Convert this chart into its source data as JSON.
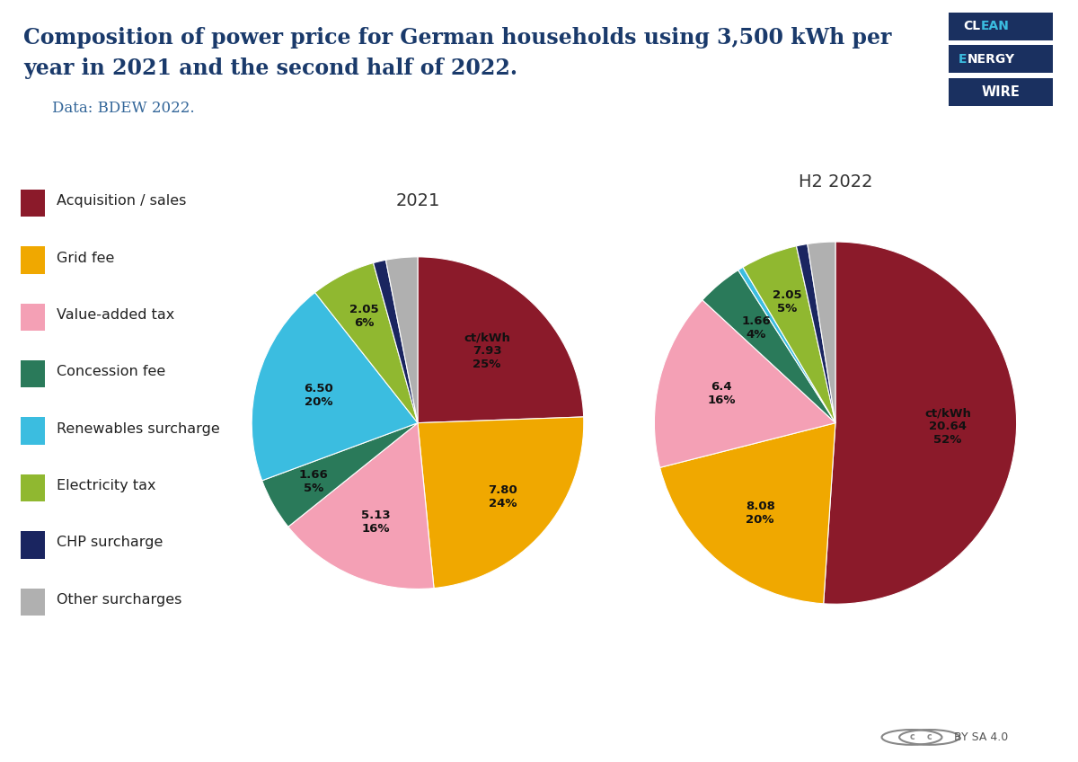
{
  "title_line1": "Composition of power price for German households using 3,500 kWh per",
  "title_line2": "year in 2021 and the second half of 2022.",
  "subtitle": "Data: BDEW 2022.",
  "title_color": "#1a3a6b",
  "subtitle_color": "#336699",
  "background_color": "#ffffff",
  "categories": [
    "Acquisition / sales",
    "Grid fee",
    "Value-added tax",
    "Concession fee",
    "Renewables surcharge",
    "Electricity tax",
    "CHP surcharge",
    "Other surcharges"
  ],
  "colors": [
    "#8b1a2a",
    "#f0a800",
    "#f4a0b5",
    "#2a7a5a",
    "#3bbde0",
    "#90b830",
    "#1a2560",
    "#b0b0b0"
  ],
  "chart2021": {
    "title": "2021",
    "values": [
      7.93,
      7.8,
      5.13,
      1.66,
      6.5,
      2.05,
      0.4,
      1.0
    ],
    "label_positions": [
      {
        "idx": 0,
        "text": "ct/kWh\n7.93\n25%",
        "rf": 0.6
      },
      {
        "idx": 1,
        "text": "7.80\n24%",
        "rf": 0.68
      },
      {
        "idx": 2,
        "text": "5.13\n16%",
        "rf": 0.65
      },
      {
        "idx": 3,
        "text": "1.66\n5%",
        "rf": 0.72
      },
      {
        "idx": 4,
        "text": "6.50\n20%",
        "rf": 0.62
      },
      {
        "idx": 5,
        "text": "2.05\n6%",
        "rf": 0.72
      }
    ]
  },
  "chart2022": {
    "title": "H2 2022",
    "values": [
      20.64,
      8.08,
      6.4,
      1.66,
      0.2,
      2.05,
      0.4,
      1.0
    ],
    "label_positions": [
      {
        "idx": 0,
        "text": "ct/kWh\n20.64\n52%",
        "rf": 0.62
      },
      {
        "idx": 1,
        "text": "8.08\n20%",
        "rf": 0.65
      },
      {
        "idx": 2,
        "text": "6.4\n16%",
        "rf": 0.65
      },
      {
        "idx": 3,
        "text": "1.66\n4%",
        "rf": 0.68
      },
      {
        "idx": 5,
        "text": "2.05\n5%",
        "rf": 0.72
      }
    ]
  },
  "logo": {
    "bg_color": "#1a3060",
    "energy_bg": "#1a3060",
    "cl_color": "#ffffff",
    "ean_color": "#3bbde0",
    "e_color": "#3bbde0",
    "nergy_color": "#ffffff",
    "wire_color": "#ffffff"
  }
}
